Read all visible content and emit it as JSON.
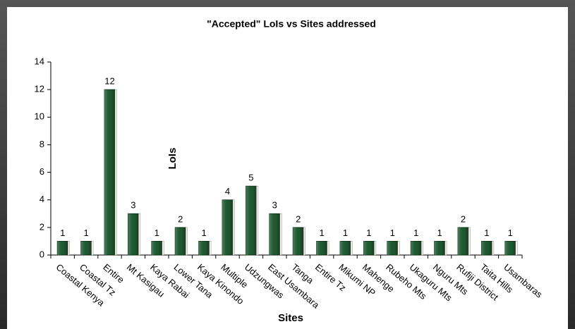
{
  "chart_data": {
    "type": "bar",
    "title": "\"Accepted\" LoIs vs Sites addressed",
    "x_label": "Sites",
    "y_label": "LoIs",
    "categories": [
      "Coastal Kenya",
      "Coastal Tz",
      "Entire",
      "Mt Kasigau",
      "Kaya Rabai",
      "Lower Tana",
      "Kaya Kinondo",
      "Multiple",
      "Udzungwas",
      "East Usambara",
      "Tanga",
      "Entire Tz",
      "Mikumi NP",
      "Mahenge",
      "Rubeho Mts",
      "Ukaguru Mts",
      "Nguru Mts",
      "Rufiji District",
      "Taita Hills",
      "Usambaras"
    ],
    "values": [
      1,
      1,
      12,
      3,
      1,
      2,
      1,
      4,
      5,
      3,
      2,
      1,
      1,
      1,
      1,
      1,
      1,
      2,
      1,
      1
    ],
    "color": "#1d5a30",
    "ylim": [
      0,
      14
    ],
    "yticks": [
      0,
      2,
      4,
      6,
      8,
      10,
      12,
      14
    ]
  }
}
